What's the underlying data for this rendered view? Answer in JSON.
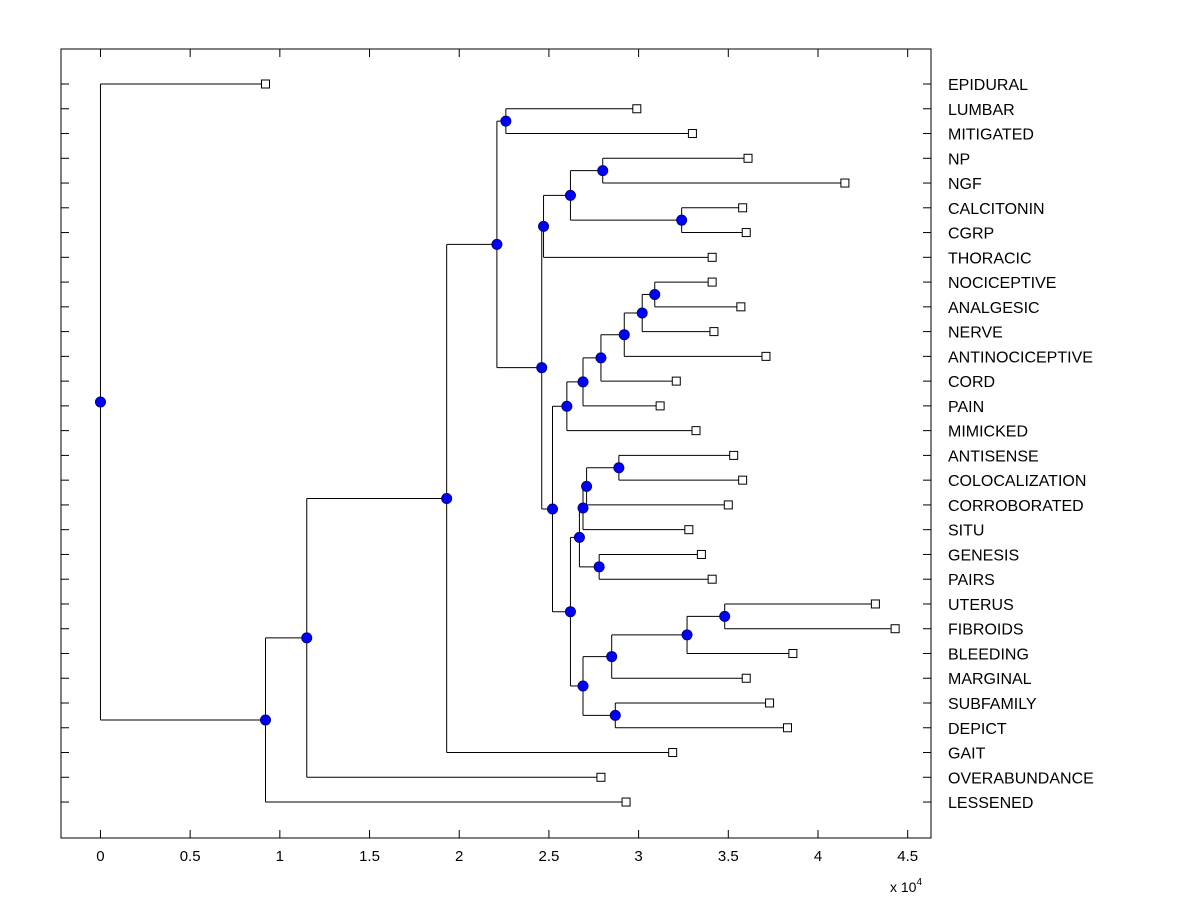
{
  "chart_data": {
    "type": "dendrogram",
    "title": "",
    "xlabel": "",
    "ylabel": "",
    "x_multiplier_label": "x 10",
    "x_multiplier_exponent": "4",
    "xlim": [
      -0.22,
      4.63
    ],
    "xticks": [
      0,
      0.5,
      1,
      1.5,
      2,
      2.5,
      3,
      3.5,
      4,
      4.5
    ],
    "xtick_labels": [
      "0",
      "0.5",
      "1",
      "1.5",
      "2",
      "2.5",
      "3",
      "3.5",
      "4",
      "4.5"
    ],
    "grid": false,
    "colors": {
      "node_fill": "#0000ff",
      "node_edge": "#000080",
      "leaf_fill": "#ffffff",
      "line": "#000000"
    },
    "leaves": [
      {
        "label": "EPIDURAL",
        "x": 0.92
      },
      {
        "label": "LUMBAR",
        "x": 2.99
      },
      {
        "label": "MITIGATED",
        "x": 3.3
      },
      {
        "label": "NP",
        "x": 3.61
      },
      {
        "label": "NGF",
        "x": 4.15
      },
      {
        "label": "CALCITONIN",
        "x": 3.58
      },
      {
        "label": "CGRP",
        "x": 3.6
      },
      {
        "label": "THORACIC",
        "x": 3.41
      },
      {
        "label": "NOCICEPTIVE",
        "x": 3.41
      },
      {
        "label": "ANALGESIC",
        "x": 3.57
      },
      {
        "label": "NERVE",
        "x": 3.42
      },
      {
        "label": "ANTINOCICEPTIVE",
        "x": 3.71
      },
      {
        "label": "CORD",
        "x": 3.21
      },
      {
        "label": "PAIN",
        "x": 3.12
      },
      {
        "label": "MIMICKED",
        "x": 3.32
      },
      {
        "label": "ANTISENSE",
        "x": 3.53
      },
      {
        "label": "COLOCALIZATION",
        "x": 3.58
      },
      {
        "label": "CORROBORATED",
        "x": 3.5
      },
      {
        "label": "SITU",
        "x": 3.28
      },
      {
        "label": "GENESIS",
        "x": 3.35
      },
      {
        "label": "PAIRS",
        "x": 3.41
      },
      {
        "label": "UTERUS",
        "x": 4.32
      },
      {
        "label": "FIBROIDS",
        "x": 4.43
      },
      {
        "label": "BLEEDING",
        "x": 3.86
      },
      {
        "label": "MARGINAL",
        "x": 3.6
      },
      {
        "label": "SUBFAMILY",
        "x": 3.73
      },
      {
        "label": "DEPICT",
        "x": 3.83
      },
      {
        "label": "GAIT",
        "x": 3.19
      },
      {
        "label": "OVERABUNDANCE",
        "x": 2.79
      },
      {
        "label": "LESSENED",
        "x": 2.93
      }
    ],
    "nodes": [
      {
        "id": "R",
        "x": 0.0,
        "children": [
          "L:EPIDURAL",
          "A"
        ]
      },
      {
        "id": "A",
        "x": 0.92,
        "children": [
          "B",
          "L:LESSENED"
        ]
      },
      {
        "id": "B",
        "x": 1.15,
        "children": [
          "C",
          "L:OVERABUNDANCE"
        ]
      },
      {
        "id": "C",
        "x": 1.93,
        "children": [
          "D",
          "L:GAIT"
        ]
      },
      {
        "id": "D",
        "x": 2.21,
        "children": [
          "E",
          "F"
        ]
      },
      {
        "id": "E",
        "x": 2.26,
        "children": [
          "L:LUMBAR",
          "L:MITIGATED"
        ]
      },
      {
        "id": "F",
        "x": 2.46,
        "children": [
          "G",
          "H"
        ]
      },
      {
        "id": "G",
        "x": 2.47,
        "children": [
          "I",
          "L:THORACIC"
        ]
      },
      {
        "id": "I",
        "x": 2.62,
        "children": [
          "J",
          "K"
        ]
      },
      {
        "id": "J",
        "x": 2.8,
        "children": [
          "L:NP",
          "L:NGF"
        ]
      },
      {
        "id": "K",
        "x": 3.24,
        "children": [
          "L:CALCITONIN",
          "L:CGRP"
        ]
      },
      {
        "id": "H",
        "x": 2.52,
        "children": [
          "LL",
          "M"
        ]
      },
      {
        "id": "LL",
        "x": 2.6,
        "children": [
          "N",
          "L:MIMICKED"
        ]
      },
      {
        "id": "N",
        "x": 2.69,
        "children": [
          "O",
          "L:PAIN"
        ]
      },
      {
        "id": "O",
        "x": 2.79,
        "children": [
          "P",
          "L:CORD"
        ]
      },
      {
        "id": "P",
        "x": 2.92,
        "children": [
          "Q",
          "L:ANTINOCICEPTIVE"
        ]
      },
      {
        "id": "Q",
        "x": 3.02,
        "children": [
          "RR",
          "L:NERVE"
        ]
      },
      {
        "id": "RR",
        "x": 3.09,
        "children": [
          "L:NOCICEPTIVE",
          "L:ANALGESIC"
        ]
      },
      {
        "id": "M",
        "x": 2.62,
        "children": [
          "S",
          "T"
        ]
      },
      {
        "id": "S",
        "x": 2.67,
        "children": [
          "U",
          "V"
        ]
      },
      {
        "id": "U",
        "x": 2.69,
        "children": [
          "W",
          "L:SITU"
        ]
      },
      {
        "id": "W",
        "x": 2.71,
        "children": [
          "X",
          "L:CORROBORATED"
        ]
      },
      {
        "id": "X",
        "x": 2.89,
        "children": [
          "L:ANTISENSE",
          "L:COLOCALIZATION"
        ]
      },
      {
        "id": "V",
        "x": 2.78,
        "children": [
          "L:GENESIS",
          "L:PAIRS"
        ]
      },
      {
        "id": "T",
        "x": 2.69,
        "children": [
          "Y",
          "Z"
        ]
      },
      {
        "id": "Y",
        "x": 2.85,
        "children": [
          "AA",
          "L:MARGINAL"
        ]
      },
      {
        "id": "AA",
        "x": 3.27,
        "children": [
          "BB",
          "L:BLEEDING"
        ]
      },
      {
        "id": "BB",
        "x": 3.48,
        "children": [
          "L:UTERUS",
          "L:FIBROIDS"
        ]
      },
      {
        "id": "Z",
        "x": 2.87,
        "children": [
          "L:SUBFAMILY",
          "L:DEPICT"
        ]
      }
    ]
  }
}
